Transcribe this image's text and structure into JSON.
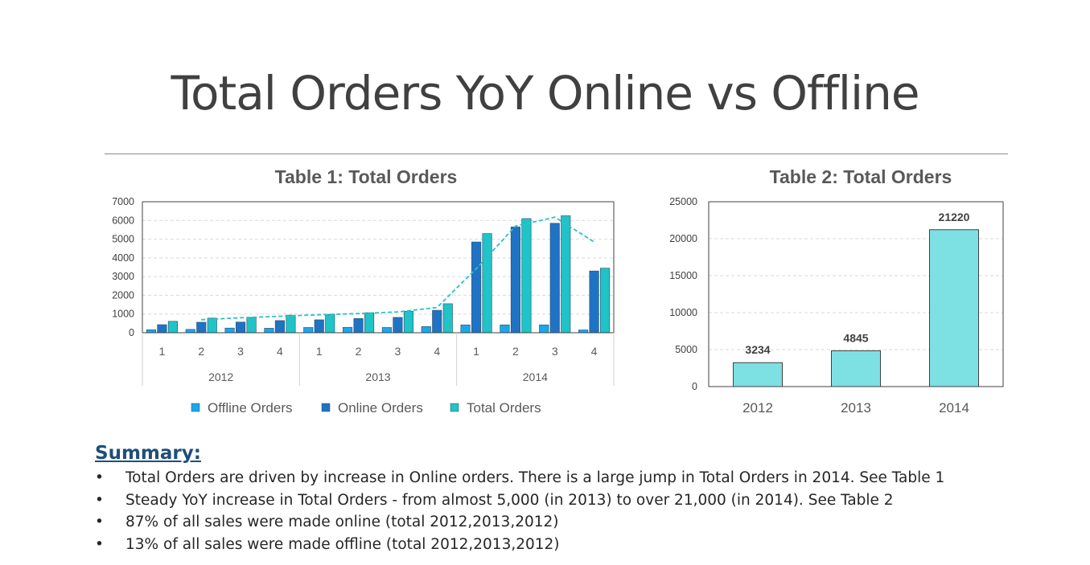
{
  "slide": {
    "title": "Total Orders YoY Online vs Offline"
  },
  "colors": {
    "offline": "#1aa7ec",
    "online": "#1f73c4",
    "total": "#1fc3c8",
    "trend": "#2fc0c4",
    "table2_bar": "#7de0e3",
    "summary_heading": "#1f4e79"
  },
  "chart_data": [
    {
      "type": "bar",
      "title": "Table 1: Total Orders",
      "xlabel": "",
      "ylabel": "",
      "ylim": [
        0,
        7000
      ],
      "yticks": [
        0,
        1000,
        2000,
        3000,
        4000,
        5000,
        6000,
        7000
      ],
      "grid": true,
      "legend_position": "bottom",
      "year_groups": [
        "2012",
        "2013",
        "2014"
      ],
      "categories": [
        "1",
        "2",
        "3",
        "4",
        "1",
        "2",
        "3",
        "4",
        "1",
        "2",
        "3",
        "4"
      ],
      "series": [
        {
          "name": "Offline Orders",
          "color": "#1aa7ec",
          "values": [
            160,
            180,
            250,
            240,
            280,
            290,
            280,
            330,
            420,
            420,
            420,
            150
          ]
        },
        {
          "name": "Online Orders",
          "color": "#1f73c4",
          "values": [
            430,
            560,
            570,
            650,
            690,
            760,
            820,
            1200,
            4850,
            5650,
            5850,
            3300
          ]
        },
        {
          "name": "Total Orders",
          "color": "#1fc3c8",
          "values": [
            610,
            780,
            820,
            940,
            980,
            1070,
            1150,
            1550,
            5300,
            6100,
            6250,
            3450
          ]
        }
      ],
      "trendline": {
        "style": "dashed",
        "based_on": "Total Orders"
      }
    },
    {
      "type": "bar",
      "title": "Table 2: Total Orders",
      "xlabel": "",
      "ylabel": "",
      "ylim": [
        0,
        25000
      ],
      "yticks": [
        0,
        5000,
        10000,
        15000,
        20000,
        25000
      ],
      "grid": true,
      "categories": [
        "2012",
        "2013",
        "2014"
      ],
      "values": [
        3234,
        4845,
        21220
      ],
      "data_labels": [
        "3234",
        "4845",
        "21220"
      ]
    }
  ],
  "summary": {
    "heading": "Summary:",
    "bullet": "•",
    "items": [
      "Total Orders are driven by increase in Online orders. There is a large jump in Total Orders in 2014. See Table 1",
      "Steady YoY increase in Total Orders - from almost 5,000 (in 2013) to over 21,000 (in 2014). See Table 2",
      "87% of all sales were made online (total 2012,2013,2012)",
      "13% of all sales were made offline (total 2012,2013,2012)"
    ]
  }
}
